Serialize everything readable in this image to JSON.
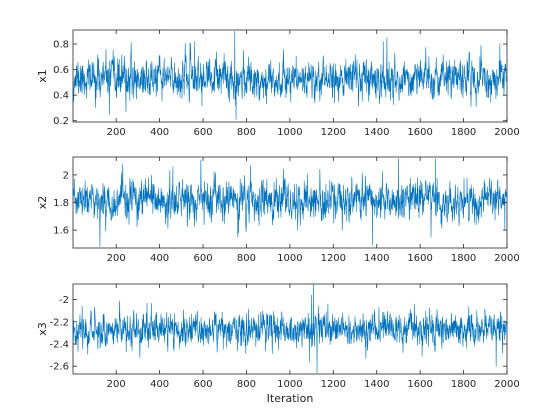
{
  "chart_data": [
    {
      "type": "line",
      "ylabel": "x1",
      "xlabel": "",
      "xlim": [
        1,
        2000
      ],
      "ylim": [
        0.19,
        0.91
      ],
      "xticks": [
        200,
        400,
        600,
        800,
        1000,
        1200,
        1400,
        1600,
        1800,
        2000
      ],
      "yticks": [
        0.2,
        0.4,
        0.6,
        0.8
      ],
      "ytick_labels": [
        "0.2",
        "0.4",
        "0.6",
        "0.8"
      ],
      "grid": false,
      "series": [
        {
          "color": "#0072bd",
          "n_points": 2000,
          "mean": 0.53,
          "sd": 0.075,
          "min": 0.21,
          "max": 0.9,
          "seed": 11,
          "extremes": [
            [
              746,
              0.9
            ],
            [
              752,
              0.21
            ],
            [
              1447,
              0.85
            ],
            [
              1430,
              0.82
            ],
            [
              560,
              0.82
            ],
            [
              169,
              0.25
            ],
            [
              245,
              0.27
            ],
            [
              1880,
              0.79
            ],
            [
              1967,
              0.8
            ]
          ]
        }
      ]
    },
    {
      "type": "line",
      "ylabel": "x2",
      "xlabel": "",
      "xlim": [
        1,
        2000
      ],
      "ylim": [
        1.47,
        2.13
      ],
      "xticks": [
        200,
        400,
        600,
        800,
        1000,
        1200,
        1400,
        1600,
        1800,
        2000
      ],
      "yticks": [
        1.6,
        1.8,
        2.0
      ],
      "ytick_labels": [
        "1.6",
        "1.8",
        "2"
      ],
      "grid": false,
      "series": [
        {
          "color": "#0072bd",
          "n_points": 2000,
          "mean": 1.81,
          "sd": 0.07,
          "min": 1.48,
          "max": 2.12,
          "seed": 23,
          "extremes": [
            [
              125,
              1.48
            ],
            [
              1380,
              1.49
            ],
            [
              1670,
              2.12
            ],
            [
              1500,
              2.12
            ],
            [
              590,
              2.11
            ],
            [
              760,
              1.55
            ],
            [
              1650,
              1.55
            ],
            [
              1990,
              1.6
            ]
          ]
        }
      ]
    },
    {
      "type": "line",
      "ylabel": "x3",
      "xlabel": "Iteration",
      "xlim": [
        1,
        2000
      ],
      "ylim": [
        -2.67,
        -1.86
      ],
      "xticks": [
        200,
        400,
        600,
        800,
        1000,
        1200,
        1400,
        1600,
        1800,
        2000
      ],
      "yticks": [
        -2.6,
        -2.4,
        -2.2,
        -2.0
      ],
      "ytick_labels": [
        "-2.6",
        "-2.4",
        "-2.2",
        "-2"
      ],
      "grid": false,
      "series": [
        {
          "color": "#0072bd",
          "n_points": 2000,
          "mean": -2.27,
          "sd": 0.075,
          "min": -2.66,
          "max": -1.86,
          "seed": 37,
          "extremes": [
            [
              1108,
              -1.86
            ],
            [
              1125,
              -2.66
            ],
            [
              1100,
              -1.96
            ],
            [
              1090,
              -2.56
            ],
            [
              1950,
              -2.6
            ],
            [
              342,
              -2.03
            ],
            [
              1175,
              -2.04
            ],
            [
              1410,
              -2.07
            ]
          ]
        }
      ]
    }
  ]
}
